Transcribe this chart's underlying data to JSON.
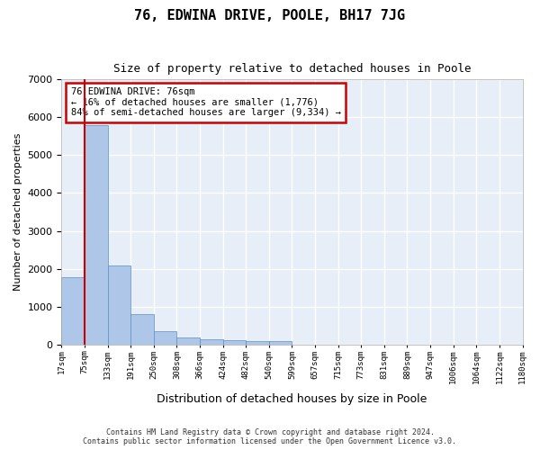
{
  "title": "76, EDWINA DRIVE, POOLE, BH17 7JG",
  "subtitle": "Size of property relative to detached houses in Poole",
  "xlabel": "Distribution of detached houses by size in Poole",
  "ylabel": "Number of detached properties",
  "bar_color": "#aec6e8",
  "bar_edge_color": "#5a8fc2",
  "background_color": "#e8eef7",
  "grid_color": "#ffffff",
  "ylim": [
    0,
    7000
  ],
  "yticks": [
    0,
    1000,
    2000,
    3000,
    4000,
    5000,
    6000,
    7000
  ],
  "bin_labels": [
    "17sqm",
    "75sqm",
    "133sqm",
    "191sqm",
    "250sqm",
    "308sqm",
    "366sqm",
    "424sqm",
    "482sqm",
    "540sqm",
    "599sqm",
    "657sqm",
    "715sqm",
    "773sqm",
    "831sqm",
    "889sqm",
    "947sqm",
    "1006sqm",
    "1064sqm",
    "1122sqm",
    "1180sqm"
  ],
  "bar_values": [
    1780,
    5800,
    2080,
    800,
    340,
    195,
    130,
    110,
    100,
    80,
    0,
    0,
    0,
    0,
    0,
    0,
    0,
    0,
    0,
    0
  ],
  "property_line_x": 0.5,
  "annotation_text": "76 EDWINA DRIVE: 76sqm\n← 16% of detached houses are smaller (1,776)\n84% of semi-detached houses are larger (9,334) →",
  "annotation_box_color": "#ffffff",
  "annotation_box_edge_color": "#cc0000",
  "property_line_color": "#cc0000",
  "footer_line1": "Contains HM Land Registry data © Crown copyright and database right 2024.",
  "footer_line2": "Contains public sector information licensed under the Open Government Licence v3.0."
}
